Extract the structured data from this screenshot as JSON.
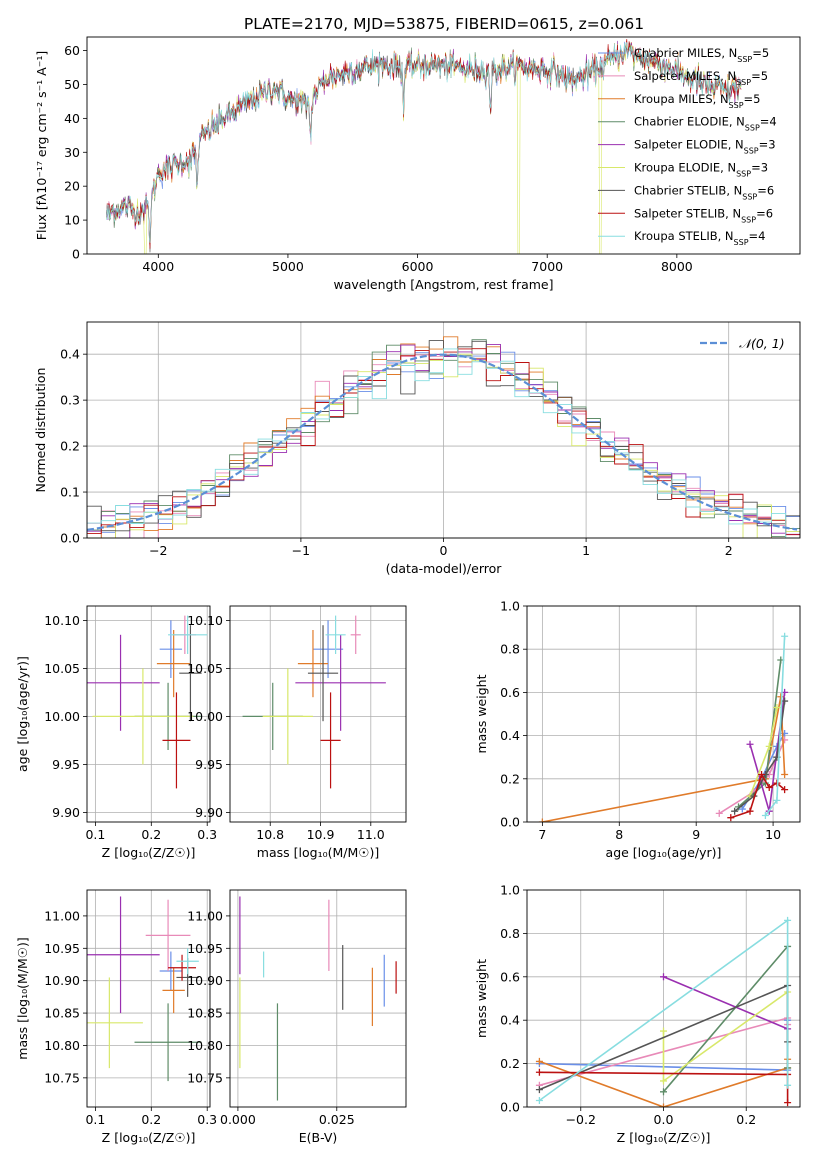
{
  "figure": {
    "title": "PLATE=2170, MJD=53875, FIBERID=0615, z=0.061",
    "models": [
      {
        "name": "Chabrier MILES",
        "nssp": "5",
        "color": "#6a8fe8"
      },
      {
        "name": "Salpeter MILES",
        "nssp": "5",
        "color": "#e88ab8"
      },
      {
        "name": "Kroupa MILES",
        "nssp": "5",
        "color": "#e07b2a"
      },
      {
        "name": "Chabrier ELODIE",
        "nssp": "4",
        "color": "#5e8c68"
      },
      {
        "name": "Salpeter ELODIE",
        "nssp": "3",
        "color": "#9a2fb0"
      },
      {
        "name": "Kroupa ELODIE",
        "nssp": "3",
        "color": "#d8e86a"
      },
      {
        "name": "Chabrier STELIB",
        "nssp": "6",
        "color": "#555555"
      },
      {
        "name": "Salpeter STELIB",
        "nssp": "6",
        "color": "#bb1111"
      },
      {
        "name": "Kroupa STELIB",
        "nssp": "4",
        "color": "#88dde0"
      }
    ]
  },
  "chart_data": [
    {
      "id": "spectrum",
      "type": "line",
      "xlabel": "wavelength [Angstrom, rest frame]",
      "ylabel": "Flux [fλ10⁻¹⁷ erg cm⁻² s⁻¹ A⁻¹]",
      "xlim": [
        3450,
        8950
      ],
      "ylim": [
        0,
        64
      ],
      "xticks": [
        4000,
        5000,
        6000,
        7000,
        8000
      ],
      "yticks": [
        0,
        10,
        20,
        30,
        40,
        50,
        60
      ],
      "legend": "upper right",
      "continuum": [
        [
          3600,
          12
        ],
        [
          3750,
          14
        ],
        [
          3850,
          12
        ],
        [
          3950,
          16
        ],
        [
          4000,
          24
        ],
        [
          4100,
          26
        ],
        [
          4250,
          28
        ],
        [
          4350,
          35
        ],
        [
          4500,
          40
        ],
        [
          4700,
          45
        ],
        [
          4900,
          49
        ],
        [
          5000,
          46
        ],
        [
          5150,
          44
        ],
        [
          5300,
          52
        ],
        [
          5500,
          54
        ],
        [
          5700,
          56
        ],
        [
          5900,
          55
        ],
        [
          6100,
          56
        ],
        [
          6300,
          55
        ],
        [
          6500,
          54
        ],
        [
          6700,
          55
        ],
        [
          6900,
          55
        ],
        [
          7050,
          54
        ],
        [
          7200,
          51
        ],
        [
          7400,
          55
        ],
        [
          7600,
          60
        ],
        [
          7800,
          57
        ],
        [
          8000,
          54
        ],
        [
          8200,
          50
        ],
        [
          8400,
          48
        ],
        [
          8500,
          50
        ]
      ],
      "absorption_features": [
        3934,
        4300,
        5175,
        5892,
        6563
      ],
      "dropouts": [
        {
          "x": 3900,
          "series": "Kroupa ELODIE"
        },
        {
          "x": 6780,
          "series": "Kroupa ELODIE"
        },
        {
          "x": 7410,
          "series": "Kroupa ELODIE"
        }
      ]
    },
    {
      "id": "residuals",
      "type": "histogram",
      "xlabel": "(data-model)/error",
      "ylabel": "Normed distribution",
      "xlim": [
        -2.5,
        2.5
      ],
      "ylim": [
        0,
        0.47
      ],
      "xticks": [
        -2,
        -1,
        0,
        1,
        2
      ],
      "yticks": [
        0.0,
        0.1,
        0.2,
        0.3,
        0.4
      ],
      "grid": true,
      "bin_width": 0.1,
      "reference": {
        "label": "𝒩(0, 1)",
        "mean": 0,
        "sigma": 1,
        "color": "#5b8fd6"
      },
      "legend": "upper right"
    },
    {
      "id": "age-vs-Z",
      "type": "scatter",
      "xlabel": "Z [log₁₀(Z/Z☉)]",
      "ylabel": "age  [log₁₀(age/yr)]",
      "xlim": [
        0.085,
        0.305
      ],
      "ylim": [
        9.89,
        10.115
      ],
      "xticks": [
        0.1,
        0.2,
        0.3
      ],
      "yticks": [
        9.9,
        9.95,
        10.0,
        10.05,
        10.1
      ],
      "grid": true,
      "points": [
        {
          "model": "Chabrier MILES",
          "x": 0.235,
          "xerr": 0.02,
          "y": 10.07,
          "yerr": 0.03
        },
        {
          "model": "Salpeter MILES",
          "x": 0.26,
          "xerr": 0.02,
          "y": 10.085,
          "yerr": 0.02
        },
        {
          "model": "Kroupa MILES",
          "x": 0.24,
          "xerr": 0.03,
          "y": 10.055,
          "yerr": 0.035
        },
        {
          "model": "Chabrier ELODIE",
          "x": 0.23,
          "xerr": 0.06,
          "y": 10.0,
          "yerr": 0.035
        },
        {
          "model": "Salpeter ELODIE",
          "x": 0.145,
          "xerr": 0.07,
          "y": 10.035,
          "yerr": 0.05
        },
        {
          "model": "Kroupa ELODIE",
          "x": 0.185,
          "xerr": 0.09,
          "y": 10.0,
          "yerr": 0.05
        },
        {
          "model": "Chabrier STELIB",
          "x": 0.27,
          "xerr": 0.02,
          "y": 10.045,
          "yerr": 0.05
        },
        {
          "model": "Salpeter STELIB",
          "x": 0.245,
          "xerr": 0.025,
          "y": 9.975,
          "yerr": 0.05
        },
        {
          "model": "Kroupa STELIB",
          "x": 0.265,
          "xerr": 0.035,
          "y": 10.085,
          "yerr": 0.02
        }
      ]
    },
    {
      "id": "age-vs-mass",
      "type": "scatter",
      "xlabel": "mass [log₁₀(M/M☉)]",
      "ylabel": "",
      "xlim": [
        10.72,
        11.07
      ],
      "ylim": [
        9.89,
        10.115
      ],
      "xticks": [
        10.8,
        10.9,
        11.0
      ],
      "yticks": [
        9.9,
        9.95,
        10.0,
        10.05,
        10.1
      ],
      "grid": true,
      "points": [
        {
          "model": "Chabrier MILES",
          "x": 10.915,
          "xerr": 0.03,
          "y": 10.07,
          "yerr": 0.03
        },
        {
          "model": "Salpeter MILES",
          "x": 10.97,
          "xerr": 0.01,
          "y": 10.085,
          "yerr": 0.02
        },
        {
          "model": "Kroupa MILES",
          "x": 10.885,
          "xerr": 0.03,
          "y": 10.055,
          "yerr": 0.035
        },
        {
          "model": "Chabrier ELODIE",
          "x": 10.805,
          "xerr": 0.06,
          "y": 10.0,
          "yerr": 0.035
        },
        {
          "model": "Salpeter ELODIE",
          "x": 10.94,
          "xerr": 0.09,
          "y": 10.035,
          "yerr": 0.05
        },
        {
          "model": "Kroupa ELODIE",
          "x": 10.835,
          "xerr": 0.05,
          "y": 10.0,
          "yerr": 0.05
        },
        {
          "model": "Chabrier STELIB",
          "x": 10.905,
          "xerr": 0.03,
          "y": 10.045,
          "yerr": 0.05
        },
        {
          "model": "Salpeter STELIB",
          "x": 10.92,
          "xerr": 0.02,
          "y": 9.975,
          "yerr": 0.05
        },
        {
          "model": "Kroupa STELIB",
          "x": 10.93,
          "xerr": 0.02,
          "y": 10.085,
          "yerr": 0.02
        }
      ]
    },
    {
      "id": "weight-vs-age",
      "type": "line",
      "xlabel": "age  [log₁₀(age/yr)]",
      "ylabel": "mass weight",
      "xlim": [
        6.8,
        10.35
      ],
      "ylim": [
        0,
        1
      ],
      "xticks": [
        7,
        8,
        9,
        10
      ],
      "yticks": [
        0.0,
        0.2,
        0.4,
        0.6,
        0.8,
        1.0
      ],
      "grid": true,
      "series": [
        {
          "name": "Chabrier MILES",
          "x": [
            9.6,
            9.85,
            10.05,
            10.15
          ],
          "y": [
            0.06,
            0.2,
            0.35,
            0.41
          ]
        },
        {
          "name": "Salpeter MILES",
          "x": [
            9.3,
            9.75,
            9.95,
            10.15
          ],
          "y": [
            0.04,
            0.14,
            0.22,
            0.38
          ]
        },
        {
          "name": "Kroupa MILES",
          "x": [
            7.0,
            9.9,
            10.1,
            10.15
          ],
          "y": [
            0.0,
            0.2,
            0.58,
            0.22
          ]
        },
        {
          "name": "Chabrier ELODIE",
          "x": [
            9.55,
            9.9,
            10.1
          ],
          "y": [
            0.07,
            0.18,
            0.75
          ]
        },
        {
          "name": "Salpeter ELODIE",
          "x": [
            9.7,
            9.95,
            10.15
          ],
          "y": [
            0.36,
            0.05,
            0.6
          ]
        },
        {
          "name": "Kroupa ELODIE",
          "x": [
            9.7,
            9.95,
            10.05
          ],
          "y": [
            0.12,
            0.35,
            0.53
          ]
        },
        {
          "name": "Chabrier STELIB",
          "x": [
            9.5,
            9.75,
            9.9,
            10.05,
            10.15
          ],
          "y": [
            0.05,
            0.12,
            0.22,
            0.3,
            0.56
          ]
        },
        {
          "name": "Salpeter STELIB",
          "x": [
            9.45,
            9.7,
            9.85,
            9.95,
            10.05,
            10.15
          ],
          "y": [
            0.02,
            0.05,
            0.22,
            0.16,
            0.18,
            0.15
          ]
        },
        {
          "name": "Kroupa STELIB",
          "x": [
            9.9,
            10.05,
            10.15
          ],
          "y": [
            0.03,
            0.1,
            0.86
          ]
        }
      ]
    },
    {
      "id": "mass-vs-Z",
      "type": "scatter",
      "xlabel": "Z [log₁₀(Z/Z☉)]",
      "ylabel": "mass [log₁₀(M/M☉)]",
      "xlim": [
        0.085,
        0.305
      ],
      "ylim": [
        10.705,
        11.04
      ],
      "xticks": [
        0.1,
        0.2,
        0.3
      ],
      "yticks": [
        10.75,
        10.8,
        10.85,
        10.9,
        10.95,
        11.0
      ],
      "grid": true,
      "points": [
        {
          "model": "Chabrier MILES",
          "x": 0.235,
          "xerr": 0.02,
          "y": 10.915,
          "yerr": 0.03
        },
        {
          "model": "Salpeter MILES",
          "x": 0.23,
          "xerr": 0.04,
          "y": 10.97,
          "yerr": 0.055
        },
        {
          "model": "Kroupa MILES",
          "x": 0.24,
          "xerr": 0.02,
          "y": 10.885,
          "yerr": 0.035
        },
        {
          "model": "Chabrier ELODIE",
          "x": 0.23,
          "xerr": 0.06,
          "y": 10.805,
          "yerr": 0.06
        },
        {
          "model": "Salpeter ELODIE",
          "x": 0.145,
          "xerr": 0.07,
          "y": 10.94,
          "yerr": 0.09
        },
        {
          "model": "Kroupa ELODIE",
          "x": 0.125,
          "xerr": 0.06,
          "y": 10.835,
          "yerr": 0.07
        },
        {
          "model": "Chabrier STELIB",
          "x": 0.265,
          "xerr": 0.02,
          "y": 10.905,
          "yerr": 0.03
        },
        {
          "model": "Salpeter STELIB",
          "x": 0.255,
          "xerr": 0.025,
          "y": 10.92,
          "yerr": 0.02
        },
        {
          "model": "Kroupa STELIB",
          "x": 0.265,
          "xerr": 0.02,
          "y": 10.93,
          "yerr": 0.02
        }
      ]
    },
    {
      "id": "mass-vs-EBV",
      "type": "scatter",
      "xlabel": "E(B-V)",
      "ylabel": "",
      "xlim": [
        -0.002,
        0.0425
      ],
      "ylim": [
        10.705,
        11.04
      ],
      "xticks": [
        0.0,
        0.025
      ],
      "yticks": [
        10.75,
        10.8,
        10.85,
        10.9,
        10.95,
        11.0
      ],
      "grid": true,
      "points": [
        {
          "model": "Chabrier MILES",
          "x": 0.037,
          "xerr": 0,
          "y": 10.9,
          "yerr": 0.04
        },
        {
          "model": "Salpeter MILES",
          "x": 0.023,
          "xerr": 0,
          "y": 10.97,
          "yerr": 0.055
        },
        {
          "model": "Kroupa MILES",
          "x": 0.034,
          "xerr": 0,
          "y": 10.875,
          "yerr": 0.045
        },
        {
          "model": "Chabrier ELODIE",
          "x": 0.01,
          "xerr": 0,
          "y": 10.79,
          "yerr": 0.075
        },
        {
          "model": "Salpeter ELODIE",
          "x": 0.0005,
          "xerr": 0,
          "y": 10.97,
          "yerr": 0.06
        },
        {
          "model": "Kroupa ELODIE",
          "x": 0.0005,
          "xerr": 0,
          "y": 10.835,
          "yerr": 0.07
        },
        {
          "model": "Chabrier STELIB",
          "x": 0.0265,
          "xerr": 0,
          "y": 10.905,
          "yerr": 0.05
        },
        {
          "model": "Salpeter STELIB",
          "x": 0.04,
          "xerr": 0,
          "y": 10.905,
          "yerr": 0.025
        },
        {
          "model": "Kroupa STELIB",
          "x": 0.0065,
          "xerr": 0,
          "y": 10.925,
          "yerr": 0.02
        }
      ]
    },
    {
      "id": "weight-vs-Z",
      "type": "line",
      "xlabel": "Z [log₁₀(Z/Z☉)]",
      "ylabel": "mass weight",
      "xlim": [
        -0.33,
        0.33
      ],
      "ylim": [
        0,
        1
      ],
      "xticks": [
        -0.2,
        0.0,
        0.2
      ],
      "yticks": [
        0.0,
        0.2,
        0.4,
        0.6,
        0.8,
        1.0
      ],
      "grid": true,
      "series": [
        {
          "name": "Chabrier MILES",
          "x": [
            -0.3,
            0.3,
            0.3
          ],
          "y": [
            0.2,
            0.17,
            0.4
          ]
        },
        {
          "name": "Salpeter MILES",
          "x": [
            -0.3,
            0.3,
            0.3
          ],
          "y": [
            0.1,
            0.41,
            0.38
          ]
        },
        {
          "name": "Kroupa MILES",
          "x": [
            -0.3,
            0.0,
            0.3,
            0.3
          ],
          "y": [
            0.21,
            0.0,
            0.18,
            0.22
          ]
        },
        {
          "name": "Chabrier ELODIE",
          "x": [
            0.0,
            0.3,
            0.3
          ],
          "y": [
            0.07,
            0.74,
            0.18
          ]
        },
        {
          "name": "Salpeter ELODIE",
          "x": [
            0.0,
            0.3
          ],
          "y": [
            0.6,
            0.36
          ]
        },
        {
          "name": "Kroupa ELODIE",
          "x": [
            0.0,
            0.0,
            0.3
          ],
          "y": [
            0.35,
            0.12,
            0.53
          ]
        },
        {
          "name": "Chabrier STELIB",
          "x": [
            -0.3,
            0.3,
            0.3
          ],
          "y": [
            0.08,
            0.56,
            0.3
          ]
        },
        {
          "name": "Salpeter STELIB",
          "x": [
            -0.3,
            0.3,
            0.3
          ],
          "y": [
            0.16,
            0.15,
            0.02
          ]
        },
        {
          "name": "Kroupa STELIB",
          "x": [
            -0.3,
            0.3,
            0.3
          ],
          "y": [
            0.03,
            0.86,
            0.1
          ]
        }
      ]
    }
  ]
}
